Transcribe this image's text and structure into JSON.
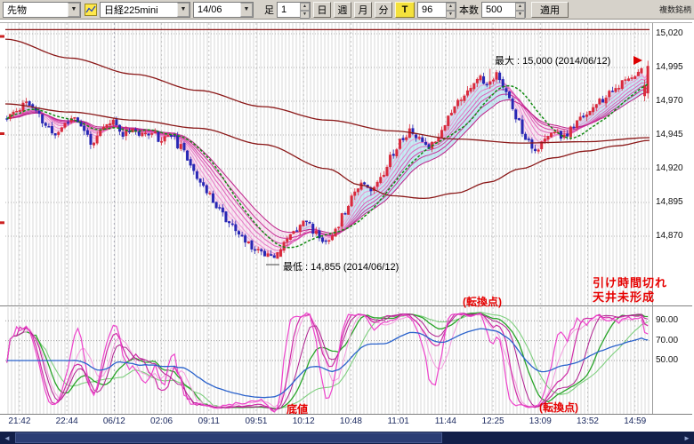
{
  "toolbar": {
    "instrument_dropdown": "先物",
    "symbol_dropdown": "日経225mini",
    "contract_dropdown": "14/06",
    "bar_label": "足",
    "interval_value": "1",
    "period_buttons": [
      "日",
      "週",
      "月",
      "分"
    ],
    "tick_button": "T",
    "minutes_value": "96",
    "bars_label": "本数",
    "bars_value": "500",
    "apply_button": "適用",
    "right_label": "複数銘柄"
  },
  "price_axis": {
    "labels": [
      {
        "text": "15,020",
        "price": 15020
      },
      {
        "text": "14,995",
        "price": 14995
      },
      {
        "text": "14,970",
        "price": 14970
      },
      {
        "text": "14,945",
        "price": 14945
      },
      {
        "text": "14,920",
        "price": 14920
      },
      {
        "text": "14,895",
        "price": 14895
      },
      {
        "text": "14,870",
        "price": 14870
      }
    ]
  },
  "indicator_axis": {
    "labels": [
      {
        "text": "90.00",
        "value": 90
      },
      {
        "text": "70.00",
        "value": 70
      },
      {
        "text": "50.00",
        "value": 50
      }
    ]
  },
  "time_axis": {
    "labels": [
      "21:42",
      "22:44",
      "06/12",
      "02:06",
      "09:11",
      "09:51",
      "10:12",
      "10:48",
      "11:01",
      "11:44",
      "12:25",
      "13:09",
      "13:52",
      "14:59"
    ]
  },
  "annotations": {
    "max_label": "最大 : 15,000 (2014/06/12)",
    "min_label": "最低 : 14,855 (2014/06/12)",
    "note_line1": "引け時間切れ",
    "note_line2": "天井未形成",
    "turning_point_upper": "(転換点)",
    "turning_point_lower": "(転換点)",
    "bottom_label": "底値"
  },
  "chart_data": {
    "type": "candlestick",
    "symbol": "日経225mini 14/06",
    "interval_minutes": 1,
    "bars_setting": 500,
    "session_max": 15000,
    "session_min": 14855,
    "price_grid_step": 25,
    "level_line_price": 15023,
    "num_bars": 200,
    "price_path": [
      [
        0.0,
        14957
      ],
      [
        0.015,
        14963
      ],
      [
        0.03,
        14970
      ],
      [
        0.045,
        14962
      ],
      [
        0.06,
        14952
      ],
      [
        0.075,
        14945
      ],
      [
        0.09,
        14953
      ],
      [
        0.105,
        14959
      ],
      [
        0.12,
        14948
      ],
      [
        0.135,
        14938
      ],
      [
        0.15,
        14950
      ],
      [
        0.165,
        14955
      ],
      [
        0.18,
        14946
      ],
      [
        0.195,
        14950
      ],
      [
        0.21,
        14944
      ],
      [
        0.225,
        14948
      ],
      [
        0.24,
        14941
      ],
      [
        0.255,
        14946
      ],
      [
        0.27,
        14936
      ],
      [
        0.285,
        14925
      ],
      [
        0.3,
        14912
      ],
      [
        0.315,
        14900
      ],
      [
        0.33,
        14892
      ],
      [
        0.345,
        14880
      ],
      [
        0.36,
        14872
      ],
      [
        0.375,
        14865
      ],
      [
        0.39,
        14860
      ],
      [
        0.405,
        14857
      ],
      [
        0.42,
        14856
      ],
      [
        0.435,
        14866
      ],
      [
        0.45,
        14876
      ],
      [
        0.465,
        14882
      ],
      [
        0.48,
        14873
      ],
      [
        0.495,
        14866
      ],
      [
        0.51,
        14872
      ],
      [
        0.525,
        14886
      ],
      [
        0.54,
        14902
      ],
      [
        0.555,
        14911
      ],
      [
        0.57,
        14904
      ],
      [
        0.585,
        14916
      ],
      [
        0.6,
        14930
      ],
      [
        0.615,
        14941
      ],
      [
        0.63,
        14948
      ],
      [
        0.645,
        14941
      ],
      [
        0.66,
        14937
      ],
      [
        0.675,
        14946
      ],
      [
        0.69,
        14960
      ],
      [
        0.705,
        14970
      ],
      [
        0.72,
        14979
      ],
      [
        0.735,
        14988
      ],
      [
        0.75,
        14982
      ],
      [
        0.765,
        14991
      ],
      [
        0.78,
        14975
      ],
      [
        0.795,
        14958
      ],
      [
        0.81,
        14943
      ],
      [
        0.825,
        14934
      ],
      [
        0.84,
        14941
      ],
      [
        0.855,
        14948
      ],
      [
        0.87,
        14943
      ],
      [
        0.885,
        14952
      ],
      [
        0.9,
        14960
      ],
      [
        0.915,
        14965
      ],
      [
        0.93,
        14971
      ],
      [
        0.945,
        14977
      ],
      [
        0.96,
        14983
      ],
      [
        0.98,
        14990
      ],
      [
        1.0,
        14997
      ]
    ],
    "ma_slow_path": [
      [
        0,
        15016
      ],
      [
        0.1,
        15002
      ],
      [
        0.2,
        14990
      ],
      [
        0.3,
        14978
      ],
      [
        0.4,
        14966
      ],
      [
        0.5,
        14956
      ],
      [
        0.6,
        14948
      ],
      [
        0.7,
        14942
      ],
      [
        0.8,
        14939
      ],
      [
        0.9,
        14940
      ],
      [
        1,
        14943
      ]
    ],
    "ma_mid_path": [
      [
        0,
        14968
      ],
      [
        0.1,
        14962
      ],
      [
        0.2,
        14956
      ],
      [
        0.3,
        14950
      ],
      [
        0.4,
        14938
      ],
      [
        0.5,
        14920
      ],
      [
        0.55,
        14908
      ],
      [
        0.6,
        14900
      ],
      [
        0.65,
        14898
      ],
      [
        0.7,
        14902
      ],
      [
        0.75,
        14910
      ],
      [
        0.8,
        14920
      ],
      [
        0.85,
        14928
      ],
      [
        0.9,
        14933
      ],
      [
        0.95,
        14937
      ],
      [
        1,
        14941
      ]
    ],
    "indicator": {
      "type": "stochastic-multi",
      "gridline_values": [
        90,
        70,
        50
      ],
      "line_families": [
        "magenta-fast-stochastics",
        "green-slow-stochastics",
        "blue-rsi"
      ]
    }
  },
  "colors": {
    "up_candle": "#d92b3c",
    "down_candle": "#2727b4",
    "ma_dark_red": "#8b1818",
    "ma_green": "#128a12",
    "ribbon_magenta": "#d846b8",
    "indicator_magenta": "#e23cc0",
    "indicator_green": "#28a428",
    "indicator_blue": "#2a62cc",
    "annotation_red": "#e60000",
    "scrollbar": "#121f49",
    "toolbar_bg": "#d6d2ca",
    "tick_button_bg": "#f4e13c"
  }
}
